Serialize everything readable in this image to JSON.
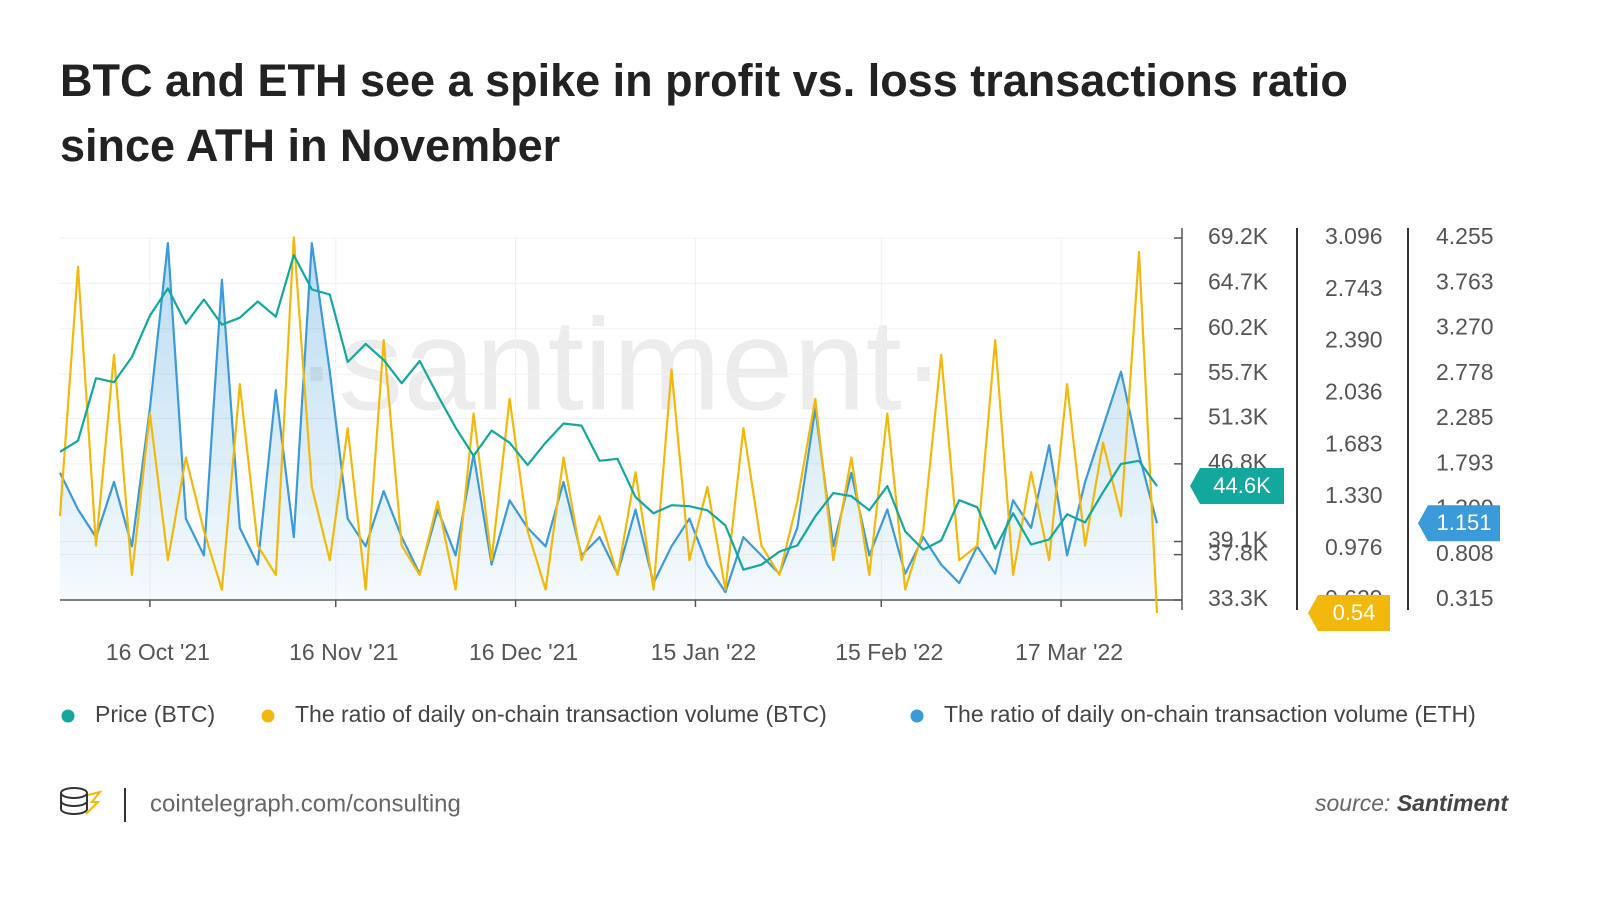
{
  "chart_data": {
    "type": "line",
    "title": "BTC and ETH see a spike in profit vs. loss transactions ratio since ATH in November",
    "watermark": "·santiment·",
    "x": [
      "2021-10-01",
      "2021-10-04",
      "2021-10-07",
      "2021-10-10",
      "2021-10-13",
      "2021-10-16",
      "2021-10-19",
      "2021-10-22",
      "2021-10-25",
      "2021-10-28",
      "2021-10-31",
      "2021-11-03",
      "2021-11-06",
      "2021-11-09",
      "2021-11-12",
      "2021-11-15",
      "2021-11-18",
      "2021-11-21",
      "2021-11-24",
      "2021-11-27",
      "2021-11-30",
      "2021-12-03",
      "2021-12-06",
      "2021-12-09",
      "2021-12-12",
      "2021-12-15",
      "2021-12-18",
      "2021-12-21",
      "2021-12-24",
      "2021-12-27",
      "2021-12-30",
      "2022-01-02",
      "2022-01-05",
      "2022-01-08",
      "2022-01-11",
      "2022-01-14",
      "2022-01-17",
      "2022-01-20",
      "2022-01-23",
      "2022-01-26",
      "2022-01-29",
      "2022-02-01",
      "2022-02-04",
      "2022-02-07",
      "2022-02-10",
      "2022-02-13",
      "2022-02-16",
      "2022-02-19",
      "2022-02-22",
      "2022-02-25",
      "2022-02-28",
      "2022-03-03",
      "2022-03-06",
      "2022-03-09",
      "2022-03-12",
      "2022-03-15",
      "2022-03-18",
      "2022-03-21",
      "2022-03-24",
      "2022-03-27",
      "2022-03-30",
      "2022-04-02"
    ],
    "xlim": [
      "2021-10-01",
      "2022-04-05"
    ],
    "xticks": [
      {
        "value": "2021-10-16",
        "label": "16 Oct '21"
      },
      {
        "value": "2021-11-16",
        "label": "16 Nov '21"
      },
      {
        "value": "2021-12-16",
        "label": "16 Dec '21"
      },
      {
        "value": "2022-01-15",
        "label": "15 Jan '22"
      },
      {
        "value": "2022-02-15",
        "label": "15 Feb '22"
      },
      {
        "value": "2022-03-17",
        "label": "17 Mar '22"
      }
    ],
    "ylim": [
      33300,
      69200
    ],
    "yticks": [
      {
        "value": 33300,
        "label": "33.3K"
      },
      {
        "value": 37800,
        "label": "37.8K"
      },
      {
        "value": 39100,
        "label": "39.1K"
      },
      {
        "value": 46800,
        "label": "46.8K"
      },
      {
        "value": 51300,
        "label": "51.3K"
      },
      {
        "value": 55700,
        "label": "55.7K"
      },
      {
        "value": 60200,
        "label": "60.2K"
      },
      {
        "value": 64700,
        "label": "64.7K"
      },
      {
        "value": 69200,
        "label": "69.2K"
      }
    ],
    "y2lim": [
      0.629,
      3.096
    ],
    "y2ticks": [
      0.629,
      0.976,
      {
        "value": 1.33,
        "label": "1.330"
      },
      2.036,
      {
        "value": 1.683,
        "label": "1.683"
      },
      {
        "value": 2.39,
        "label": "2.390"
      },
      2.743,
      3.096
    ],
    "y3lim": [
      0.315,
      4.255
    ],
    "y3ticks": [
      0.315,
      0.808,
      {
        "value": 1.3,
        "label": "1.300"
      },
      1.793,
      2.285,
      2.778,
      {
        "value": 3.27,
        "label": "3.270"
      },
      3.763,
      4.255
    ],
    "grid": true,
    "series": [
      {
        "name": "Price (BTC)",
        "color": "#13a89e",
        "axis": "y",
        "tag_last": true,
        "values": [
          48000,
          49100,
          55300,
          54900,
          57400,
          61500,
          64200,
          60700,
          63100,
          60600,
          61300,
          62900,
          61400,
          67500,
          64100,
          63600,
          56900,
          58700,
          57100,
          54800,
          57000,
          53600,
          50400,
          47600,
          50100,
          48900,
          46700,
          48900,
          50800,
          50600,
          47100,
          47300,
          43500,
          41900,
          42700,
          42600,
          42200,
          40700,
          36300,
          36800,
          38100,
          38700,
          41600,
          43900,
          43600,
          42200,
          44600,
          40100,
          38300,
          39200,
          43200,
          42500,
          38400,
          41900,
          38800,
          39300,
          41800,
          41000,
          44000,
          46800,
          47100,
          44600
        ],
        "value_labels": [
          null,
          null,
          null,
          null,
          null,
          null,
          null,
          null,
          null,
          null,
          null,
          null,
          null,
          null,
          null,
          null,
          null,
          null,
          null,
          null,
          null,
          null,
          null,
          null,
          null,
          null,
          null,
          null,
          null,
          null,
          null,
          null,
          null,
          null,
          null,
          null,
          null,
          null,
          null,
          null,
          null,
          null,
          null,
          null,
          null,
          null,
          null,
          null,
          null,
          null,
          null,
          null,
          null,
          null,
          null,
          null,
          null,
          null,
          null,
          null,
          null,
          "44.6K"
        ]
      },
      {
        "name": "The ratio of daily on-chain transaction volume (BTC)",
        "color": "#f2b90c",
        "axis": "y2",
        "tag_last": true,
        "values": [
          1.2,
          2.9,
          1.0,
          2.3,
          0.8,
          1.9,
          0.9,
          1.6,
          1.1,
          0.7,
          2.1,
          1.0,
          0.8,
          3.1,
          1.4,
          0.9,
          1.8,
          0.7,
          2.4,
          1.0,
          0.8,
          1.3,
          0.7,
          1.9,
          0.9,
          2.0,
          1.1,
          0.7,
          1.6,
          0.9,
          1.2,
          0.8,
          1.5,
          0.7,
          2.2,
          0.9,
          1.4,
          0.7,
          1.8,
          1.0,
          0.8,
          1.3,
          2.0,
          0.9,
          1.6,
          0.8,
          1.9,
          0.7,
          1.1,
          2.3,
          0.9,
          1.0,
          2.4,
          0.8,
          1.5,
          0.9,
          2.1,
          1.0,
          1.7,
          1.2,
          3.0,
          0.54
        ]
      },
      {
        "name": "The ratio of daily on-chain transaction volume (ETH)",
        "color": "#3b9ad9",
        "axis": "y3",
        "tag_last": true,
        "area": true,
        "values": [
          1.7,
          1.3,
          1.0,
          1.6,
          0.9,
          2.4,
          4.2,
          1.2,
          0.8,
          3.8,
          1.1,
          0.7,
          2.6,
          1.0,
          4.2,
          2.8,
          1.2,
          0.9,
          1.5,
          1.0,
          0.6,
          1.3,
          0.8,
          1.9,
          0.7,
          1.4,
          1.1,
          0.9,
          1.6,
          0.8,
          1.0,
          0.6,
          1.3,
          0.5,
          0.9,
          1.2,
          0.7,
          0.4,
          1.0,
          0.8,
          0.6,
          1.1,
          2.4,
          0.9,
          1.7,
          0.8,
          1.3,
          0.6,
          1.0,
          0.7,
          0.5,
          0.9,
          0.6,
          1.4,
          1.1,
          2.0,
          0.8,
          1.6,
          2.2,
          2.8,
          1.9,
          1.151
        ]
      }
    ]
  },
  "footer": {
    "site": "cointelegraph.com/consulting",
    "source_prefix": "source:",
    "source": "Santiment"
  }
}
